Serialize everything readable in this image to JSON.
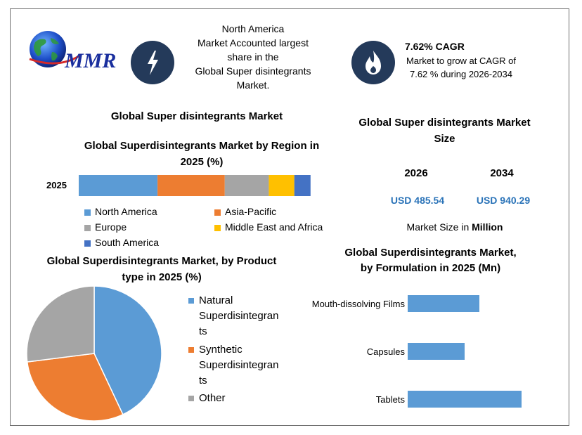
{
  "logo": {
    "text": "MMR"
  },
  "callout_left": {
    "icon": "lightning-icon",
    "text_lines": [
      "North America",
      "Market Accounted largest",
      "share in the",
      "Global Super disintegrants",
      "Market."
    ]
  },
  "callout_right": {
    "icon": "flame-icon",
    "title": "7.62% CAGR",
    "text_lines": [
      "Market to grow at CAGR of",
      "7.62 % during 2026-2034"
    ]
  },
  "section_title": "Global Super disintegrants Market",
  "market_size": {
    "title_lines": [
      "Global Super disintegrants Market",
      "Size"
    ],
    "years": [
      "2026",
      "2034"
    ],
    "values": [
      "USD 485.54",
      "USD 940.29"
    ],
    "note_prefix": "Market Size in ",
    "note_bold": "Million"
  },
  "colors": {
    "blue": "#5b9bd5",
    "orange": "#ed7d31",
    "gray": "#a5a5a5",
    "yellow": "#ffc000",
    "darkblue": "#4472c4",
    "frame": "#6e6e6e",
    "icon_bg": "#243a5a",
    "value_blue": "#2a73b8"
  },
  "chart_data": [
    {
      "type": "bar",
      "orientation": "horizontal-stacked",
      "title_lines": [
        "Global Superdisintegrants Market by Region in",
        "2025 (%)"
      ],
      "categories": [
        "2025"
      ],
      "series": [
        {
          "name": "North America",
          "values": [
            34
          ],
          "color": "#5b9bd5"
        },
        {
          "name": "Asia-Pacific",
          "values": [
            29
          ],
          "color": "#ed7d31"
        },
        {
          "name": "Europe",
          "values": [
            19
          ],
          "color": "#a5a5a5"
        },
        {
          "name": "Middle East and Africa",
          "values": [
            11
          ],
          "color": "#ffc000"
        },
        {
          "name": "South America",
          "values": [
            7
          ],
          "color": "#4472c4"
        }
      ],
      "legend": "bottom"
    },
    {
      "type": "pie",
      "title_lines": [
        "Global Superdisintegrants Market, by Product",
        "type in 2025 (%)"
      ],
      "slices": [
        {
          "name": "Natural Superdisintegrants",
          "legend_lines": [
            "Natural",
            "Superdisintegran",
            "ts"
          ],
          "value": 43,
          "color": "#5b9bd5"
        },
        {
          "name": "Synthetic Superdisintegrants",
          "legend_lines": [
            "Synthetic",
            "Superdisintegran",
            "ts"
          ],
          "value": 30,
          "color": "#ed7d31"
        },
        {
          "name": "Other",
          "legend_lines": [
            "Other"
          ],
          "value": 27,
          "color": "#a5a5a5"
        }
      ],
      "legend": "right"
    },
    {
      "type": "bar",
      "orientation": "horizontal",
      "title_lines": [
        "Global Superdisintegrants Market,",
        "by Formulation in 2025 (Mn)"
      ],
      "categories": [
        "Mouth-dissolving Films",
        "Capsules",
        "Tablets"
      ],
      "values": [
        170,
        135,
        270
      ],
      "xlim": [
        0,
        300
      ],
      "color": "#5b9bd5"
    }
  ]
}
